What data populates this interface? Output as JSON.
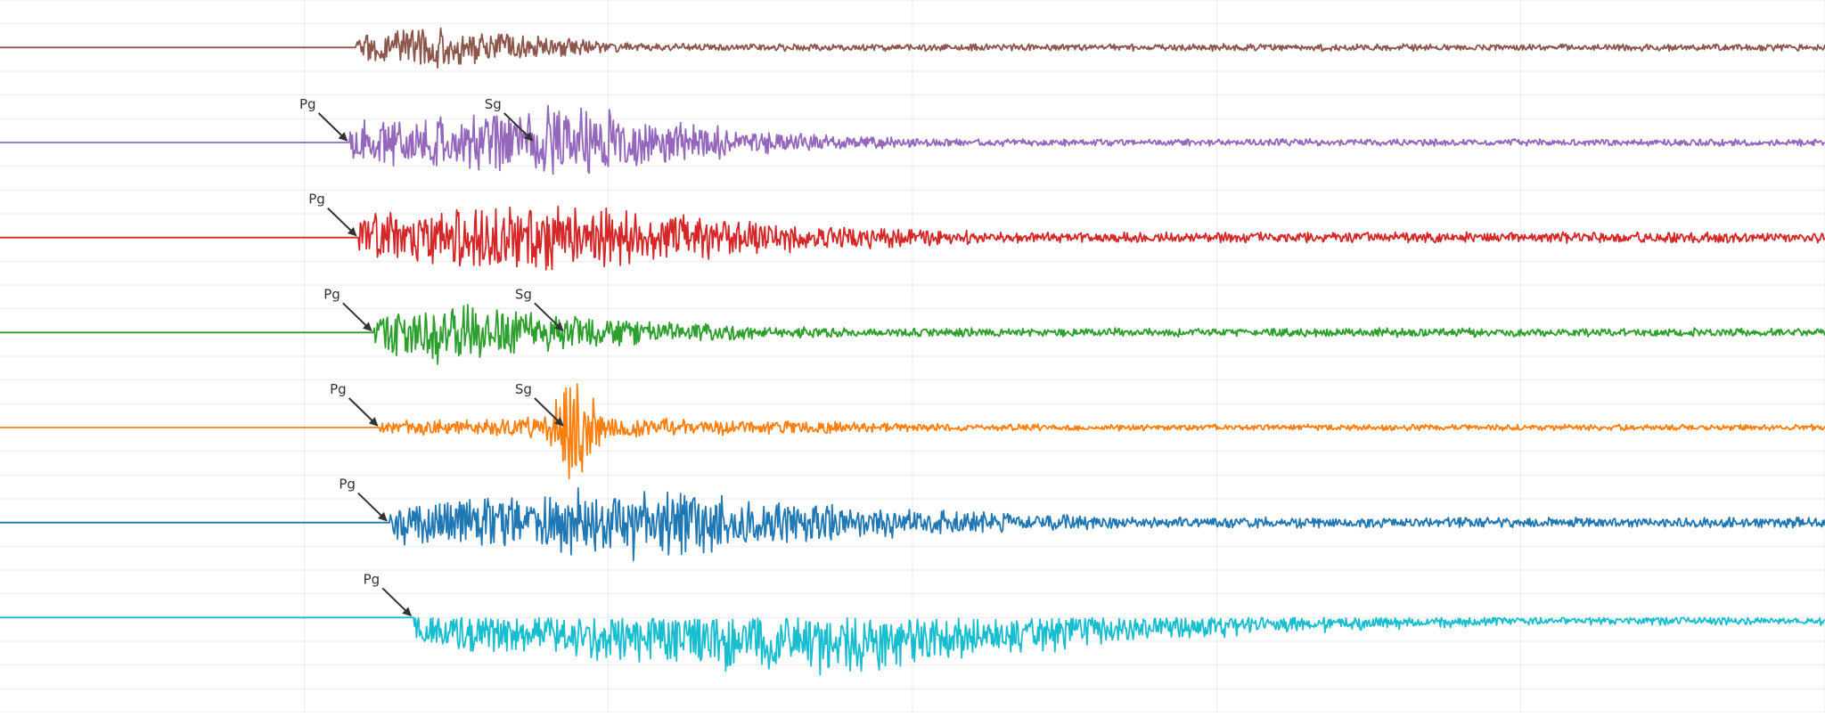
{
  "chart_data": {
    "type": "line",
    "chart_kind": "seismogram-record-section",
    "grid": true,
    "grid_color": "#ebebeb",
    "arrow_color": "#333333",
    "x_range": [
      -80,
      520
    ],
    "y_range": [
      -0.5,
      7.0
    ],
    "series": [
      {
        "color": "#8c564b",
        "offset": 0.0,
        "onset": 37,
        "amplitude": 0.28,
        "peak": 60,
        "decay": 45,
        "floor": 0.04,
        "seed": 3,
        "picks": []
      },
      {
        "color": "#9467bd",
        "offset": 1.0,
        "onset": 35,
        "amplitude": 0.42,
        "peak": 110,
        "decay": 55,
        "floor": 0.04,
        "seed": 7,
        "picks": [
          {
            "label": "Pg",
            "x": 35
          },
          {
            "label": "Sg",
            "x": 96
          }
        ]
      },
      {
        "color": "#d62728",
        "offset": 2.0,
        "onset": 38,
        "amplitude": 0.45,
        "peak": 100,
        "decay": 80,
        "floor": 0.06,
        "seed": 11,
        "picks": [
          {
            "label": "Pg",
            "x": 38
          }
        ]
      },
      {
        "color": "#2ca02c",
        "offset": 3.0,
        "onset": 43,
        "amplitude": 0.42,
        "peak": 62,
        "decay": 65,
        "floor": 0.05,
        "seed": 17,
        "picks": [
          {
            "label": "Pg",
            "x": 43
          },
          {
            "label": "Sg",
            "x": 106
          }
        ]
      },
      {
        "color": "#ff7f0e",
        "offset": 4.0,
        "onset": 45,
        "amplitude": 0.13,
        "peak": 112,
        "decay": 120,
        "floor": 0.035,
        "seed": 23,
        "spike": {
          "x": 109,
          "amplitude": 0.52,
          "width": 6
        },
        "picks": [
          {
            "label": "Pg",
            "x": 45
          },
          {
            "label": "Sg",
            "x": 106
          }
        ]
      },
      {
        "color": "#1f77b4",
        "offset": 5.0,
        "onset": 48,
        "amplitude": 0.42,
        "peak": 130,
        "decay": 90,
        "floor": 0.06,
        "seed": 29,
        "picks": [
          {
            "label": "Pg",
            "x": 48
          }
        ]
      },
      {
        "color": "#17becf",
        "offset": 6.0,
        "onset": 56,
        "amplitude": 0.48,
        "peak": 200,
        "decay": 110,
        "floor": 0.06,
        "seed": 31,
        "one_sided": true,
        "picks": [
          {
            "label": "Pg",
            "x": 56
          }
        ]
      }
    ]
  }
}
